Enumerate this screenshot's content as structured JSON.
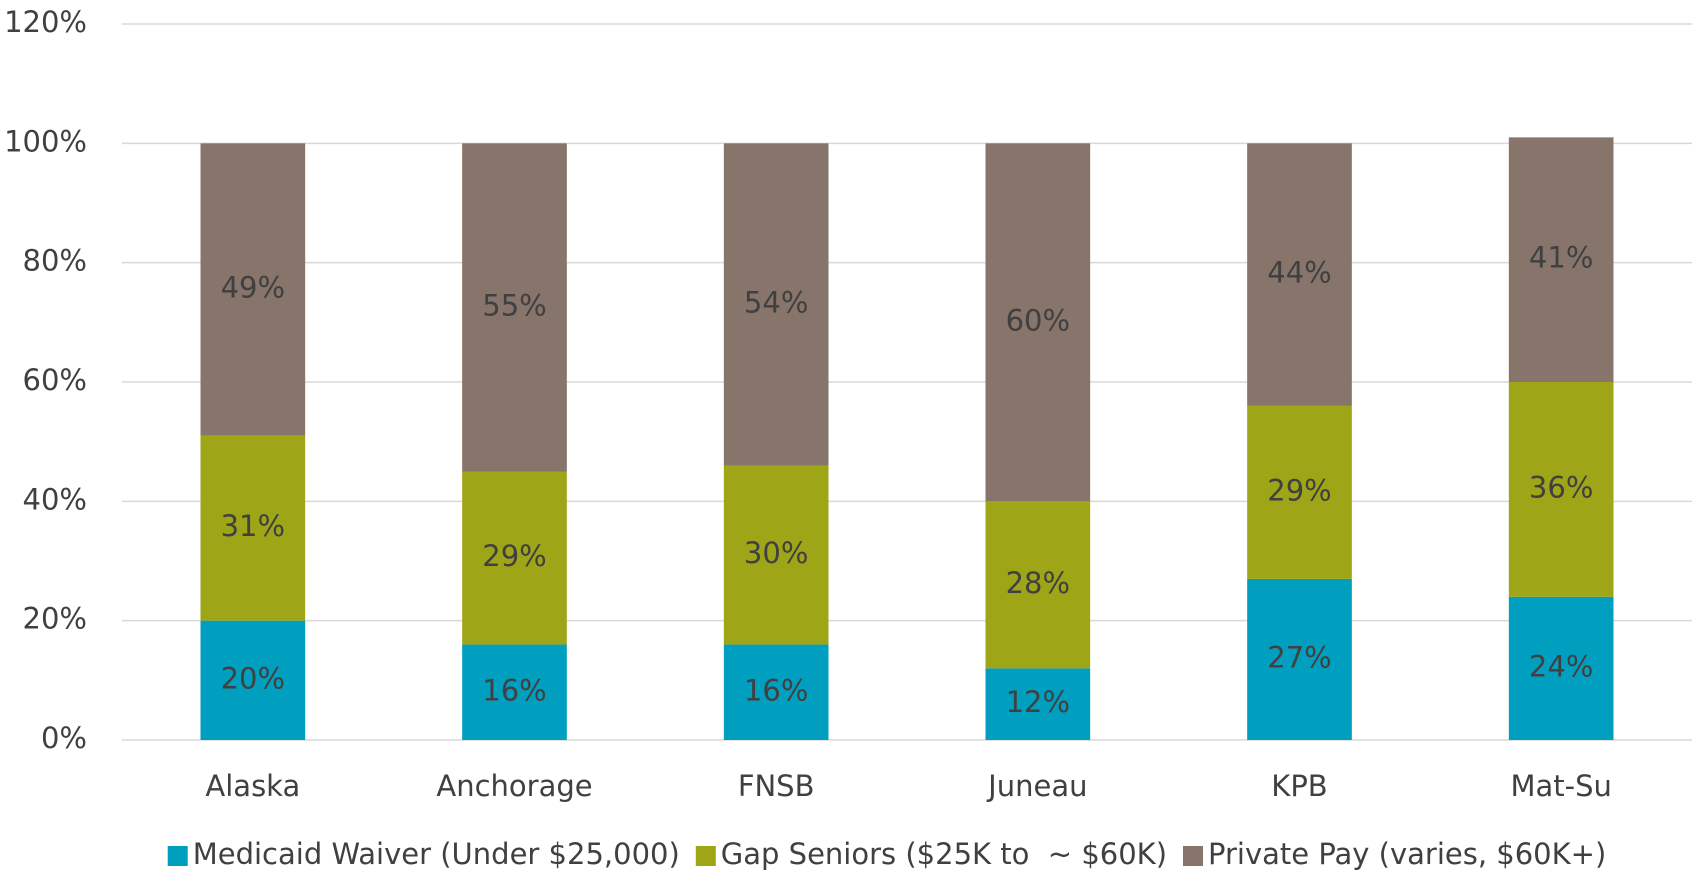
{
  "chart_data": {
    "type": "stacked_bar",
    "categories": [
      "Alaska",
      "Anchorage",
      "FNSB",
      "Juneau",
      "KPB",
      "Mat-Su"
    ],
    "series": [
      {
        "name": "Medicaid Waiver (Under $25,000)",
        "color": "#009fc0",
        "values": [
          20,
          16,
          16,
          12,
          27,
          24
        ],
        "value_labels": [
          "20%",
          "16%",
          "16%",
          "12%",
          "27%",
          "24%"
        ]
      },
      {
        "name": "Gap Seniors ($25K to  ~ $60K)",
        "color": "#9ea618",
        "values": [
          31,
          29,
          30,
          28,
          29,
          36
        ],
        "value_labels": [
          "31%",
          "29%",
          "30%",
          "28%",
          "29%",
          "36%"
        ]
      },
      {
        "name": "Private Pay (varies, $60K+)",
        "color": "#87746a",
        "values": [
          49,
          55,
          54,
          60,
          44,
          41
        ],
        "value_labels": [
          "49%",
          "55%",
          "54%",
          "60%",
          "44%",
          "41%"
        ]
      }
    ],
    "ylim": [
      0,
      120
    ],
    "yticks": [
      {
        "value": 0,
        "label": "0%"
      },
      {
        "value": 20,
        "label": "20%"
      },
      {
        "value": 40,
        "label": "40%"
      },
      {
        "value": 60,
        "label": "60%"
      },
      {
        "value": 80,
        "label": "80%"
      },
      {
        "value": 100,
        "label": "100%"
      },
      {
        "value": 120,
        "label": "120%"
      }
    ],
    "grid": true,
    "legend": "bottom"
  }
}
